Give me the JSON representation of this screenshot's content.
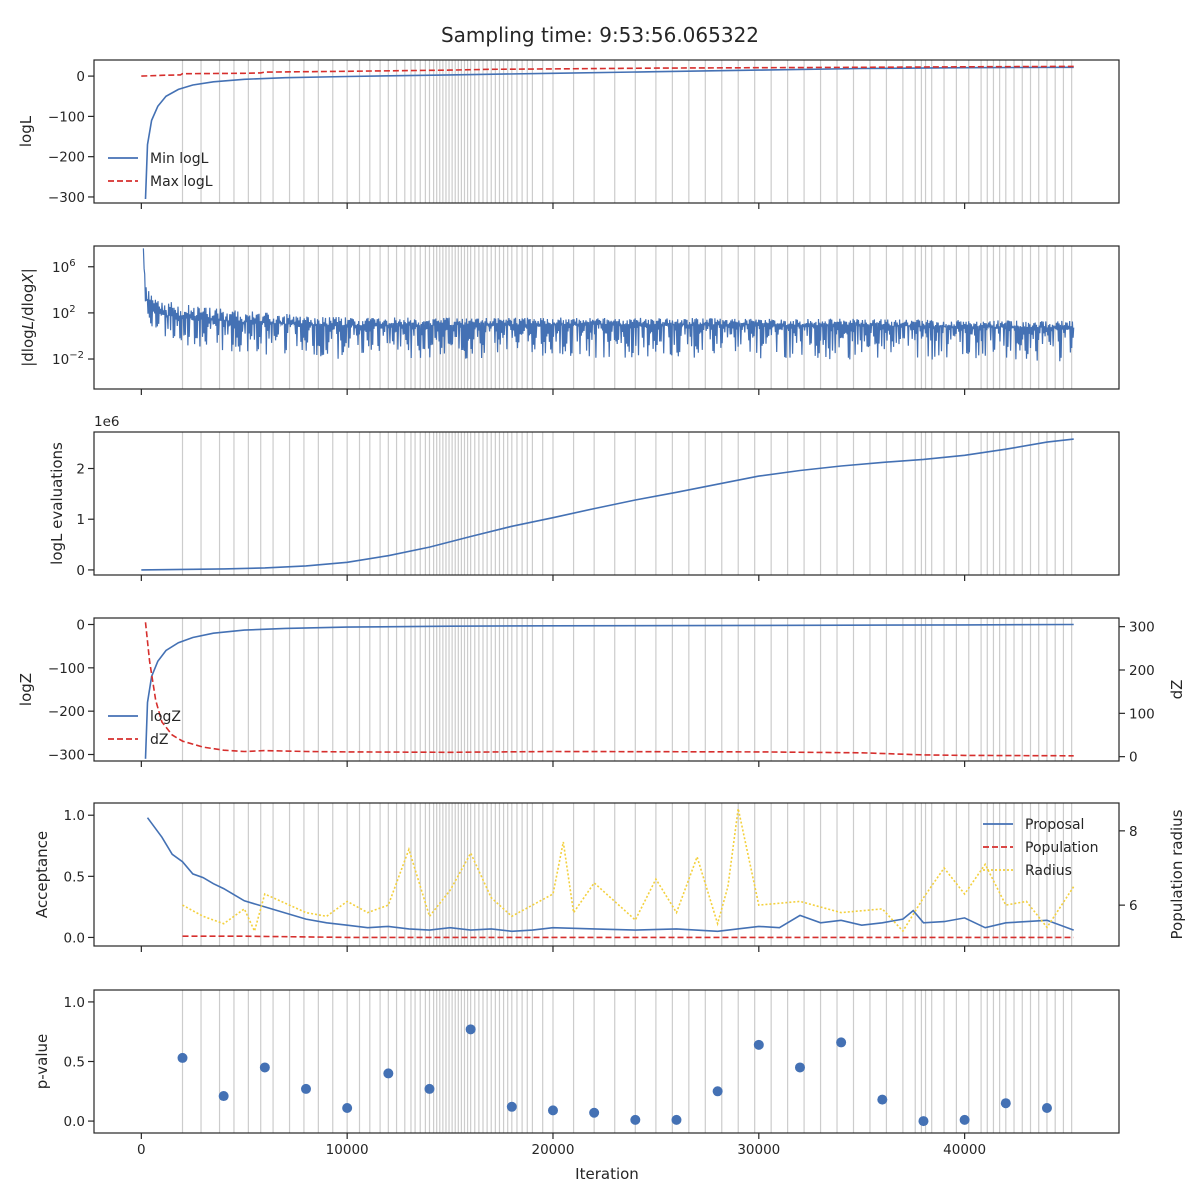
{
  "figure": {
    "title": "Sampling time: 9:53:56.065322",
    "x_axis_label": "Iteration"
  },
  "colors": {
    "blue": "#4471b4",
    "red": "#d62f2d",
    "yellow": "#f3d03d",
    "gridline": "#cccccc",
    "axis": "#262626"
  },
  "chart_data": [
    {
      "id": "logL",
      "type": "line",
      "ylabel": "logL",
      "xlim": [
        -2300,
        47500
      ],
      "ylim": [
        -315,
        40
      ],
      "yticks": [
        0,
        -100,
        -200,
        -300
      ],
      "ytick_labels": [
        "0",
        "−100",
        "−200",
        "−300"
      ],
      "legend": {
        "position": "lower-left",
        "entries": [
          "Min logL",
          "Max logL"
        ]
      },
      "series": [
        {
          "name": "Min logL",
          "style": "solid",
          "color": "blue",
          "x": [
            200,
            300,
            500,
            800,
            1200,
            1800,
            2500,
            3500,
            5000,
            7000,
            10000,
            15000,
            20000,
            25000,
            30000,
            35000,
            40000,
            45300
          ],
          "y": [
            -305,
            -170,
            -110,
            -75,
            -50,
            -33,
            -22,
            -14,
            -8,
            -4,
            -1,
            3,
            7,
            11,
            15,
            19,
            21,
            22
          ]
        },
        {
          "name": "Max logL",
          "style": "dashed",
          "color": "red",
          "x": [
            0,
            1000,
            1900,
            2000,
            5000,
            5800,
            6000,
            10000,
            15000,
            17000,
            20000,
            25000,
            30000,
            35000,
            40000,
            45300
          ],
          "y": [
            0,
            2,
            3,
            6,
            7,
            8,
            10,
            12,
            15,
            17,
            18,
            20,
            21,
            22,
            23,
            24
          ]
        }
      ]
    },
    {
      "id": "dlogL",
      "type": "line",
      "ylabel": "|dlogL/dlogX|",
      "yscale": "log",
      "xlim": [
        -2300,
        47500
      ],
      "ylim_log10": [
        -4.6,
        7.8
      ],
      "yticks_log10": [
        6,
        2,
        -2
      ],
      "ytick_labels": [
        "10",
        "10",
        "10"
      ],
      "ytick_exponents": [
        "6",
        "2",
        "−2"
      ],
      "series": [
        {
          "name": "",
          "style": "solid",
          "color": "blue",
          "x": [
            100,
            150,
            200,
            300,
            500,
            800,
            1200,
            2000,
            3000,
            5000,
            8000,
            10000,
            15000,
            20000,
            25000,
            30000,
            35000,
            40000,
            45300
          ],
          "y_log10_center": [
            7.0,
            5.5,
            4.0,
            3.0,
            2.4,
            2.0,
            1.8,
            1.6,
            1.4,
            1.2,
            1.0,
            0.9,
            0.95,
            1.0,
            1.0,
            0.95,
            0.9,
            0.8,
            0.7
          ],
          "y_log10_low": [
            6.0,
            4.0,
            2.5,
            1.5,
            0.8,
            0.2,
            -0.3,
            -0.8,
            -1.2,
            -1.6,
            -1.9,
            -2.0,
            -2.0,
            -1.9,
            -1.9,
            -2.0,
            -2.1,
            -2.2,
            -2.2
          ],
          "y_log10_high": [
            7.6,
            6.0,
            5.0,
            4.0,
            3.6,
            3.3,
            3.1,
            2.8,
            2.5,
            2.2,
            1.8,
            1.6,
            1.6,
            1.6,
            1.6,
            1.5,
            1.5,
            1.4,
            1.3
          ]
        }
      ]
    },
    {
      "id": "evals",
      "type": "line",
      "ylabel": "logL evaluations",
      "offset_label": "1e6",
      "xlim": [
        -2300,
        47500
      ],
      "ylim": [
        -0.1,
        2.72
      ],
      "yticks": [
        0,
        1,
        2
      ],
      "ytick_labels": [
        "0",
        "1",
        "2"
      ],
      "series": [
        {
          "name": "",
          "style": "solid",
          "color": "blue",
          "x": [
            0,
            2000,
            4000,
            6000,
            8000,
            10000,
            12000,
            14000,
            16000,
            18000,
            20000,
            22000,
            24000,
            26000,
            28000,
            30000,
            32000,
            34000,
            36000,
            38000,
            40000,
            42000,
            44000,
            45300
          ],
          "y": [
            0.0,
            0.01,
            0.02,
            0.04,
            0.08,
            0.15,
            0.28,
            0.45,
            0.66,
            0.86,
            1.03,
            1.21,
            1.38,
            1.53,
            1.69,
            1.85,
            1.96,
            2.05,
            2.12,
            2.18,
            2.26,
            2.38,
            2.52,
            2.58
          ]
        }
      ]
    },
    {
      "id": "logZ",
      "type": "line",
      "ylabel": "logZ",
      "y2label": "dZ",
      "xlim": [
        -2300,
        47500
      ],
      "ylim": [
        -315,
        15
      ],
      "yticks": [
        0,
        -100,
        -200,
        -300
      ],
      "ytick_labels": [
        "0",
        "−100",
        "−200",
        "−300"
      ],
      "y2lim": [
        -10,
        320
      ],
      "y2ticks": [
        300,
        200,
        100,
        0
      ],
      "y2tick_labels": [
        "300",
        "200",
        "100",
        "0"
      ],
      "legend": {
        "position": "lower-left",
        "entries": [
          "logZ",
          "dZ"
        ]
      },
      "series": [
        {
          "name": "logZ",
          "style": "solid",
          "color": "blue",
          "axis": "left",
          "x": [
            200,
            300,
            500,
            800,
            1200,
            1800,
            2500,
            3500,
            5000,
            7000,
            10000,
            15000,
            20000,
            30000,
            40000,
            45300
          ],
          "y": [
            -310,
            -180,
            -120,
            -85,
            -60,
            -42,
            -30,
            -20,
            -13,
            -9,
            -6,
            -4,
            -3,
            -2,
            -1,
            0
          ]
        },
        {
          "name": "dZ",
          "style": "dashed",
          "color": "red",
          "axis": "right",
          "x": [
            200,
            400,
            700,
            1000,
            1500,
            2000,
            3000,
            4000,
            5000,
            6000,
            8000,
            10000,
            15000,
            20000,
            30000,
            35000,
            38000,
            40000,
            45300
          ],
          "y": [
            310,
            220,
            130,
            80,
            50,
            36,
            22,
            15,
            12,
            14,
            12,
            11,
            10,
            12,
            11,
            9,
            4,
            3,
            2
          ]
        }
      ]
    },
    {
      "id": "acceptance",
      "type": "line",
      "ylabel": "Acceptance",
      "y2label": "Population radius",
      "xlim": [
        -2300,
        47500
      ],
      "ylim": [
        -0.07,
        1.1
      ],
      "yticks": [
        0,
        0.5,
        1.0
      ],
      "ytick_labels": [
        "0.0",
        "0.5",
        "1.0"
      ],
      "y2lim": [
        4.9,
        8.75
      ],
      "y2ticks": [
        6,
        8
      ],
      "y2tick_labels": [
        "6",
        "8"
      ],
      "legend": {
        "position": "upper-right",
        "entries": [
          "Proposal",
          "Population",
          "Radius"
        ]
      },
      "series": [
        {
          "name": "Proposal",
          "style": "solid",
          "color": "blue",
          "axis": "left",
          "x": [
            300,
            1000,
            1500,
            2000,
            2500,
            3000,
            3500,
            4000,
            4500,
            5000,
            6000,
            7000,
            8000,
            9000,
            10000,
            11000,
            12000,
            13000,
            14000,
            15000,
            16000,
            17000,
            18000,
            19000,
            20000,
            22000,
            24000,
            26000,
            28000,
            30000,
            31000,
            32000,
            33000,
            34000,
            35000,
            36000,
            37000,
            37500,
            38000,
            39000,
            40000,
            41000,
            42000,
            43000,
            44000,
            45300
          ],
          "y": [
            0.98,
            0.82,
            0.68,
            0.62,
            0.52,
            0.49,
            0.44,
            0.4,
            0.35,
            0.3,
            0.25,
            0.2,
            0.15,
            0.12,
            0.1,
            0.08,
            0.09,
            0.07,
            0.06,
            0.08,
            0.06,
            0.07,
            0.05,
            0.06,
            0.08,
            0.07,
            0.06,
            0.07,
            0.05,
            0.09,
            0.08,
            0.18,
            0.12,
            0.14,
            0.1,
            0.12,
            0.15,
            0.22,
            0.12,
            0.13,
            0.16,
            0.08,
            0.12,
            0.13,
            0.14,
            0.06
          ]
        },
        {
          "name": "Population",
          "style": "dashed",
          "color": "red",
          "axis": "left",
          "x": [
            2000,
            5000,
            10000,
            15000,
            20000,
            25000,
            30000,
            35000,
            40000,
            45300
          ],
          "y": [
            0.01,
            0.01,
            0.0,
            0.0,
            0.0,
            0.0,
            0.0,
            0.0,
            0.0,
            0.0
          ]
        },
        {
          "name": "Radius",
          "style": "dotted",
          "color": "yellow",
          "axis": "right",
          "x": [
            2000,
            3000,
            4000,
            5000,
            5500,
            6000,
            8000,
            9000,
            10000,
            11000,
            12000,
            13000,
            14000,
            15000,
            16000,
            17000,
            18000,
            20000,
            20500,
            21000,
            22000,
            24000,
            25000,
            26000,
            27000,
            28000,
            28500,
            29000,
            30000,
            32000,
            34000,
            36000,
            37000,
            38000,
            39000,
            40000,
            41000,
            42000,
            43000,
            44000,
            45300
          ],
          "y": [
            6.0,
            5.7,
            5.5,
            5.9,
            5.3,
            6.3,
            5.8,
            5.7,
            6.1,
            5.8,
            6.0,
            7.5,
            5.7,
            6.4,
            7.4,
            6.2,
            5.7,
            6.3,
            7.7,
            5.8,
            6.6,
            5.6,
            6.7,
            5.8,
            7.3,
            5.5,
            6.5,
            8.6,
            6.0,
            6.1,
            5.8,
            5.9,
            5.3,
            6.2,
            7.0,
            6.3,
            7.1,
            6.0,
            6.1,
            5.4,
            6.5
          ]
        }
      ]
    },
    {
      "id": "pvalue",
      "type": "scatter",
      "ylabel": "p-value",
      "xlabel": "Iteration",
      "xlim": [
        -2300,
        47500
      ],
      "ylim": [
        -0.1,
        1.1
      ],
      "yticks": [
        0,
        0.5,
        1.0
      ],
      "ytick_labels": [
        "0.0",
        "0.5",
        "1.0"
      ],
      "xticks": [
        0,
        10000,
        20000,
        30000,
        40000
      ],
      "xtick_labels": [
        "0",
        "10000",
        "20000",
        "30000",
        "40000"
      ],
      "series": [
        {
          "name": "",
          "style": "markers",
          "color": "blue",
          "x": [
            2000,
            4000,
            6000,
            8000,
            10000,
            12000,
            14000,
            16000,
            18000,
            20000,
            22000,
            24000,
            26000,
            28000,
            30000,
            32000,
            34000,
            36000,
            38000,
            40000,
            42000,
            44000
          ],
          "y": [
            0.53,
            0.21,
            0.45,
            0.27,
            0.11,
            0.4,
            0.27,
            0.77,
            0.12,
            0.09,
            0.07,
            0.01,
            0.01,
            0.25,
            0.64,
            0.45,
            0.66,
            0.18,
            0.0,
            0.01,
            0.15,
            0.11
          ]
        }
      ]
    }
  ],
  "insertion_iterations": [
    2000,
    2900,
    3800,
    4500,
    5200,
    5800,
    6400,
    7200,
    7900,
    8600,
    9300,
    10000,
    10600,
    11100,
    11600,
    12000,
    12400,
    12800,
    13100,
    13300,
    13550,
    13800,
    14000,
    14200,
    14350,
    14500,
    14650,
    14800,
    14950,
    15100,
    15250,
    15400,
    15550,
    15700,
    15850,
    16000,
    16200,
    16400,
    16600,
    16800,
    17000,
    17200,
    17400,
    17600,
    17800,
    18000,
    18250,
    18500,
    18750,
    19000,
    19500,
    20000,
    21000,
    22000,
    23000,
    24000,
    25000,
    25800,
    26600,
    27400,
    28200,
    29000,
    29800,
    30600,
    31400,
    32200,
    33000,
    33800,
    34600,
    35400,
    36200,
    37000,
    37600,
    37900,
    38100,
    38400,
    39000,
    39600,
    40200,
    40800,
    41100,
    41400,
    41700,
    42000,
    42400,
    42800,
    43200,
    43600,
    44000,
    44400,
    44800,
    45200
  ]
}
